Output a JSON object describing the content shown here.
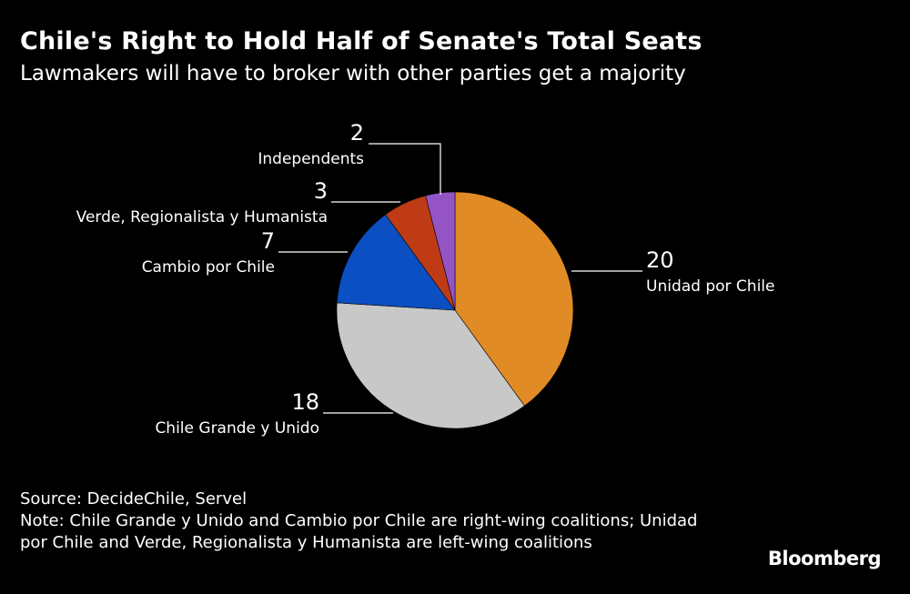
{
  "header": {
    "title": "Chile's Right to Hold Half of Senate's Total Seats",
    "subtitle": "Lawmakers will have to broker with other parties get a majority"
  },
  "chart_data": {
    "type": "pie",
    "slices": [
      {
        "label": "Unidad por Chile",
        "value": 20,
        "color": "#e08b25"
      },
      {
        "label": "Chile Grande y Unido",
        "value": 18,
        "color": "#c8c8c8"
      },
      {
        "label": "Cambio por Chile",
        "value": 7,
        "color": "#0b4fc2"
      },
      {
        "label": "Verde, Regionalista y Humanista",
        "value": 3,
        "color": "#bf3b16"
      },
      {
        "label": "Independents",
        "value": 2,
        "color": "#9454c4"
      }
    ],
    "start": "12 o'clock, clockwise"
  },
  "footer": {
    "source": "Source: DecideChile, Servel",
    "note": "Note: Chile Grande y Unido and Cambio por Chile are right-wing coalitions; Unidad por Chile and Verde, Regionalista y Humanista are left-wing coalitions"
  },
  "branding": {
    "logo": "Bloomberg"
  }
}
